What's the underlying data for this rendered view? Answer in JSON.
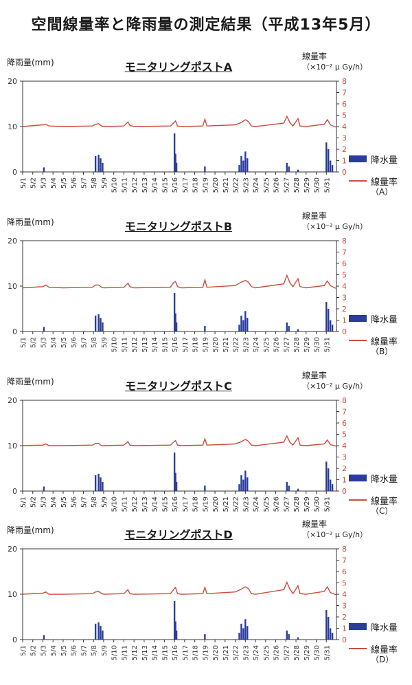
{
  "title": "空間線量率と降雨量の測定結果（平成13年5月）",
  "colors": {
    "rain": "#2a3c9c",
    "dose": "#cf4a3a",
    "axis": "#333333",
    "right_ticks": "#cf4a3a"
  },
  "axes": {
    "left_label": "降雨量(mm)",
    "right_label": "線量率",
    "right_unit": "（×10⁻² μ Gy/h）",
    "left_ticks": [
      "0",
      "10",
      "20"
    ],
    "right_ticks": [
      "0",
      "1",
      "2",
      "3",
      "4",
      "5",
      "6",
      "7",
      "8"
    ]
  },
  "legend": {
    "rain": "降水量",
    "dose": "線量率"
  },
  "chart_data": [
    {
      "type": "bar+line",
      "title": "モニタリングポストA",
      "legend_sub": "（A）",
      "categories": [
        "5/1",
        "5/2",
        "5/3",
        "5/4",
        "5/5",
        "5/6",
        "5/7",
        "5/8",
        "5/9",
        "5/10",
        "5/11",
        "5/12",
        "5/13",
        "5/14",
        "5/15",
        "5/16",
        "5/17",
        "5/18",
        "5/19",
        "5/20",
        "5/21",
        "5/22",
        "5/23",
        "5/24",
        "5/25",
        "5/26",
        "5/27",
        "5/28",
        "5/29",
        "5/30",
        "5/31"
      ],
      "xlim": [
        1,
        32
      ],
      "ylim_left": [
        0,
        20
      ],
      "ylim_right": [
        0,
        8
      ],
      "rain_mm": [
        [
          3.1,
          1
        ],
        [
          8.2,
          3.5
        ],
        [
          8.5,
          3.8
        ],
        [
          8.7,
          3
        ],
        [
          8.9,
          2
        ],
        [
          16.0,
          8.5
        ],
        [
          16.1,
          4
        ],
        [
          16.2,
          2
        ],
        [
          19.0,
          1.2
        ],
        [
          22.4,
          1.5
        ],
        [
          22.6,
          3.5
        ],
        [
          22.8,
          2.5
        ],
        [
          23.0,
          4.5
        ],
        [
          23.2,
          3
        ],
        [
          27.1,
          2
        ],
        [
          27.3,
          1.2
        ],
        [
          28.2,
          0.5
        ],
        [
          31.0,
          6.5
        ],
        [
          31.2,
          5
        ],
        [
          31.4,
          2.5
        ],
        [
          31.6,
          1.5
        ]
      ],
      "dose": [
        [
          1,
          4.0
        ],
        [
          3.0,
          4.15
        ],
        [
          3.3,
          4.2
        ],
        [
          3.6,
          4.05
        ],
        [
          5,
          4.0
        ],
        [
          7.9,
          4.05
        ],
        [
          8.2,
          4.2
        ],
        [
          8.5,
          4.25
        ],
        [
          8.8,
          4.05
        ],
        [
          9,
          4.0
        ],
        [
          11,
          4.05
        ],
        [
          11.4,
          4.4
        ],
        [
          11.6,
          4.1
        ],
        [
          12,
          4.0
        ],
        [
          15.6,
          4.05
        ],
        [
          15.9,
          4.3
        ],
        [
          16.1,
          4.5
        ],
        [
          16.3,
          4.05
        ],
        [
          16.7,
          4.0
        ],
        [
          18.8,
          4.05
        ],
        [
          19.0,
          4.65
        ],
        [
          19.2,
          4.05
        ],
        [
          22.0,
          4.15
        ],
        [
          22.6,
          4.35
        ],
        [
          23.0,
          4.6
        ],
        [
          23.3,
          4.45
        ],
        [
          23.6,
          4.05
        ],
        [
          24,
          4.0
        ],
        [
          26.8,
          4.3
        ],
        [
          27.1,
          4.9
        ],
        [
          27.4,
          4.35
        ],
        [
          27.7,
          4.05
        ],
        [
          28.2,
          4.7
        ],
        [
          28.4,
          4.05
        ],
        [
          29,
          4.0
        ],
        [
          30.8,
          4.2
        ],
        [
          31.1,
          4.6
        ],
        [
          31.4,
          4.15
        ],
        [
          31.8,
          4.0
        ],
        [
          32,
          3.95
        ]
      ]
    },
    {
      "type": "bar+line",
      "title": "モニタリングポストB",
      "legend_sub": "（B）",
      "categories": [
        "5/1",
        "5/2",
        "5/3",
        "5/4",
        "5/5",
        "5/6",
        "5/7",
        "5/8",
        "5/9",
        "5/10",
        "5/11",
        "5/12",
        "5/13",
        "5/14",
        "5/15",
        "5/16",
        "5/17",
        "5/18",
        "5/19",
        "5/20",
        "5/21",
        "5/22",
        "5/23",
        "5/24",
        "5/25",
        "5/26",
        "5/27",
        "5/28",
        "5/29",
        "5/30",
        "5/31"
      ],
      "xlim": [
        1,
        32
      ],
      "ylim_left": [
        0,
        20
      ],
      "ylim_right": [
        0,
        8
      ],
      "rain_mm": [
        [
          3.1,
          1
        ],
        [
          8.2,
          3.5
        ],
        [
          8.5,
          3.8
        ],
        [
          8.7,
          3
        ],
        [
          8.9,
          2
        ],
        [
          16.0,
          8.5
        ],
        [
          16.1,
          4
        ],
        [
          16.2,
          2
        ],
        [
          19.0,
          1.2
        ],
        [
          22.4,
          1.5
        ],
        [
          22.6,
          3.5
        ],
        [
          22.8,
          2.5
        ],
        [
          23.0,
          4.5
        ],
        [
          23.2,
          3
        ],
        [
          27.1,
          2
        ],
        [
          27.3,
          1.2
        ],
        [
          28.2,
          0.5
        ],
        [
          31.0,
          6.5
        ],
        [
          31.2,
          5
        ],
        [
          31.4,
          2.5
        ],
        [
          31.6,
          1.5
        ]
      ],
      "dose": [
        [
          1,
          3.85
        ],
        [
          3.0,
          3.95
        ],
        [
          3.3,
          4.1
        ],
        [
          3.6,
          3.9
        ],
        [
          5,
          3.85
        ],
        [
          7.9,
          3.9
        ],
        [
          8.2,
          4.1
        ],
        [
          8.5,
          4.1
        ],
        [
          8.8,
          3.9
        ],
        [
          9,
          3.85
        ],
        [
          11,
          3.9
        ],
        [
          11.4,
          4.25
        ],
        [
          11.6,
          3.95
        ],
        [
          12,
          3.85
        ],
        [
          15.6,
          3.9
        ],
        [
          15.9,
          4.3
        ],
        [
          16.1,
          4.4
        ],
        [
          16.3,
          3.95
        ],
        [
          16.7,
          3.85
        ],
        [
          18.8,
          3.9
        ],
        [
          19.0,
          4.55
        ],
        [
          19.2,
          3.9
        ],
        [
          22.0,
          4.05
        ],
        [
          22.6,
          4.35
        ],
        [
          23.0,
          4.5
        ],
        [
          23.3,
          4.35
        ],
        [
          23.6,
          3.95
        ],
        [
          24,
          3.85
        ],
        [
          26.8,
          4.2
        ],
        [
          27.1,
          4.95
        ],
        [
          27.4,
          4.3
        ],
        [
          27.7,
          3.95
        ],
        [
          28.2,
          4.65
        ],
        [
          28.4,
          3.95
        ],
        [
          29,
          3.85
        ],
        [
          30.8,
          4.05
        ],
        [
          31.1,
          4.45
        ],
        [
          31.4,
          4.05
        ],
        [
          31.8,
          3.85
        ],
        [
          32,
          3.8
        ]
      ]
    },
    {
      "type": "bar+line",
      "title": "モニタリングポストC",
      "legend_sub": "（C）",
      "categories": [
        "5/1",
        "5/2",
        "5/3",
        "5/4",
        "5/5",
        "5/6",
        "5/7",
        "5/8",
        "5/9",
        "5/10",
        "5/11",
        "5/12",
        "5/13",
        "5/14",
        "5/15",
        "5/16",
        "5/17",
        "5/18",
        "5/19",
        "5/20",
        "5/21",
        "5/22",
        "5/23",
        "5/24",
        "5/25",
        "5/26",
        "5/27",
        "5/28",
        "5/29",
        "5/30",
        "5/31"
      ],
      "xlim": [
        1,
        32
      ],
      "ylim_left": [
        0,
        20
      ],
      "ylim_right": [
        0,
        8
      ],
      "rain_mm": [
        [
          3.1,
          1
        ],
        [
          8.2,
          3.5
        ],
        [
          8.5,
          3.8
        ],
        [
          8.7,
          3
        ],
        [
          8.9,
          2
        ],
        [
          16.0,
          8.5
        ],
        [
          16.1,
          4
        ],
        [
          16.2,
          2
        ],
        [
          19.0,
          1.2
        ],
        [
          22.4,
          1.5
        ],
        [
          22.6,
          3.5
        ],
        [
          22.8,
          2.5
        ],
        [
          23.0,
          4.5
        ],
        [
          23.2,
          3
        ],
        [
          27.1,
          2
        ],
        [
          27.3,
          1.2
        ],
        [
          28.2,
          0.5
        ],
        [
          31.0,
          6.5
        ],
        [
          31.2,
          5
        ],
        [
          31.4,
          2.5
        ],
        [
          31.6,
          1.5
        ]
      ],
      "dose": [
        [
          1,
          4.0
        ],
        [
          3.0,
          4.05
        ],
        [
          3.3,
          4.15
        ],
        [
          3.6,
          4.0
        ],
        [
          5,
          4.0
        ],
        [
          7.9,
          4.05
        ],
        [
          8.2,
          4.2
        ],
        [
          8.5,
          4.2
        ],
        [
          8.8,
          4.0
        ],
        [
          9,
          4.0
        ],
        [
          11,
          4.05
        ],
        [
          11.4,
          4.35
        ],
        [
          11.6,
          4.05
        ],
        [
          12,
          4.0
        ],
        [
          15.6,
          4.05
        ],
        [
          15.9,
          4.3
        ],
        [
          16.1,
          4.45
        ],
        [
          16.3,
          4.05
        ],
        [
          16.7,
          4.0
        ],
        [
          18.8,
          4.05
        ],
        [
          19.0,
          4.6
        ],
        [
          19.2,
          4.05
        ],
        [
          22.0,
          4.15
        ],
        [
          22.6,
          4.35
        ],
        [
          23.0,
          4.55
        ],
        [
          23.3,
          4.4
        ],
        [
          23.6,
          4.05
        ],
        [
          24,
          4.0
        ],
        [
          26.8,
          4.3
        ],
        [
          27.1,
          4.85
        ],
        [
          27.4,
          4.3
        ],
        [
          27.7,
          4.05
        ],
        [
          28.2,
          4.7
        ],
        [
          28.4,
          4.05
        ],
        [
          29,
          4.0
        ],
        [
          30.8,
          4.15
        ],
        [
          31.1,
          4.5
        ],
        [
          31.4,
          4.1
        ],
        [
          31.8,
          4.0
        ],
        [
          32,
          3.95
        ]
      ]
    },
    {
      "type": "bar+line",
      "title": "モニタリングポストD",
      "legend_sub": "（D）",
      "categories": [
        "5/1",
        "5/2",
        "5/3",
        "5/4",
        "5/5",
        "5/6",
        "5/7",
        "5/8",
        "5/9",
        "5/10",
        "5/11",
        "5/12",
        "5/13",
        "5/14",
        "5/15",
        "5/16",
        "5/17",
        "5/18",
        "5/19",
        "5/20",
        "5/21",
        "5/22",
        "5/23",
        "5/24",
        "5/25",
        "5/26",
        "5/27",
        "5/28",
        "5/29",
        "5/30",
        "5/31"
      ],
      "xlim": [
        1,
        32
      ],
      "ylim_left": [
        0,
        20
      ],
      "ylim_right": [
        0,
        8
      ],
      "rain_mm": [
        [
          3.1,
          1
        ],
        [
          8.2,
          3.5
        ],
        [
          8.5,
          3.8
        ],
        [
          8.7,
          3
        ],
        [
          8.9,
          2
        ],
        [
          16.0,
          8.5
        ],
        [
          16.1,
          4
        ],
        [
          16.2,
          2
        ],
        [
          19.0,
          1.2
        ],
        [
          22.4,
          1.5
        ],
        [
          22.6,
          3.5
        ],
        [
          22.8,
          2.5
        ],
        [
          23.0,
          4.5
        ],
        [
          23.2,
          3
        ],
        [
          27.1,
          2
        ],
        [
          27.3,
          1.2
        ],
        [
          28.2,
          0.5
        ],
        [
          31.0,
          6.5
        ],
        [
          31.2,
          5
        ],
        [
          31.4,
          2.5
        ],
        [
          31.6,
          1.5
        ]
      ],
      "dose": [
        [
          1,
          4.0
        ],
        [
          3.0,
          4.1
        ],
        [
          3.3,
          4.2
        ],
        [
          3.6,
          4.0
        ],
        [
          5,
          4.0
        ],
        [
          7.9,
          4.05
        ],
        [
          8.2,
          4.2
        ],
        [
          8.5,
          4.25
        ],
        [
          8.8,
          4.05
        ],
        [
          9,
          4.0
        ],
        [
          11,
          4.05
        ],
        [
          11.4,
          4.4
        ],
        [
          11.6,
          4.05
        ],
        [
          12,
          4.0
        ],
        [
          15.6,
          4.05
        ],
        [
          15.9,
          4.4
        ],
        [
          16.1,
          4.6
        ],
        [
          16.3,
          4.05
        ],
        [
          16.7,
          4.0
        ],
        [
          18.8,
          4.05
        ],
        [
          19.0,
          4.6
        ],
        [
          19.2,
          4.05
        ],
        [
          22.0,
          4.2
        ],
        [
          22.6,
          4.45
        ],
        [
          23.0,
          4.65
        ],
        [
          23.3,
          4.5
        ],
        [
          23.6,
          4.05
        ],
        [
          24,
          4.0
        ],
        [
          26.8,
          4.4
        ],
        [
          27.1,
          5.05
        ],
        [
          27.4,
          4.45
        ],
        [
          27.7,
          4.05
        ],
        [
          28.2,
          4.75
        ],
        [
          28.4,
          4.05
        ],
        [
          29,
          4.0
        ],
        [
          30.8,
          4.25
        ],
        [
          31.1,
          4.65
        ],
        [
          31.4,
          4.15
        ],
        [
          31.8,
          4.0
        ],
        [
          32,
          3.95
        ]
      ]
    }
  ]
}
